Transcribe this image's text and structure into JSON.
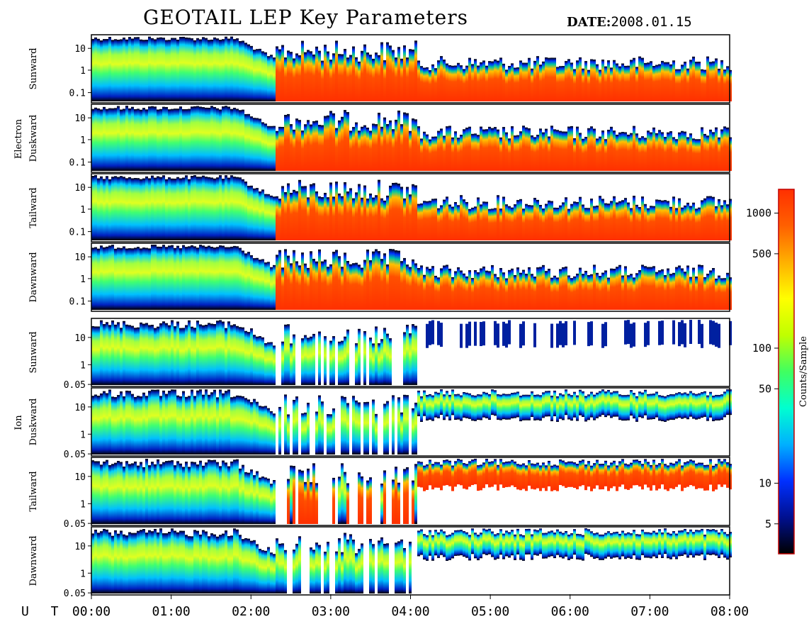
{
  "header": {
    "title": "GEOTAIL LEP Key Parameters",
    "date_label": "DATE:",
    "date_value": "2008.01.15"
  },
  "chart_data": {
    "type": "heatmap",
    "title": "GEOTAIL LEP Key Parameters",
    "x_axis": {
      "label": "U T",
      "range": [
        "00:00",
        "08:00"
      ],
      "ticks": [
        "00:00",
        "01:00",
        "02:00",
        "03:00",
        "04:00",
        "05:00",
        "06:00",
        "07:00",
        "08:00"
      ]
    },
    "groups": [
      {
        "name": "Electron",
        "panels": [
          {
            "label": "Sunward",
            "y_ticks": [
              "10",
              "1",
              "0.1"
            ]
          },
          {
            "label": "Duskward",
            "y_ticks": [
              "10",
              "1",
              "0.1"
            ]
          },
          {
            "label": "Tailward",
            "y_ticks": [
              "10",
              "1",
              "0.1"
            ]
          },
          {
            "label": "Dawnward",
            "y_ticks": [
              "10",
              "1",
              "0.1"
            ]
          }
        ]
      },
      {
        "name": "Ion",
        "panels": [
          {
            "label": "Sunward",
            "y_ticks": [
              "10",
              "1",
              "0.05"
            ]
          },
          {
            "label": "Duskward",
            "y_ticks": [
              "10",
              "1",
              "0.05"
            ]
          },
          {
            "label": "Tailward",
            "y_ticks": [
              "10",
              "1",
              "0.05"
            ]
          },
          {
            "label": "Dawnward",
            "y_ticks": [
              "10",
              "1",
              "0.05"
            ]
          }
        ]
      }
    ],
    "colorbar": {
      "label": "Counts/Sample",
      "scale": "log",
      "range": [
        3,
        1500
      ],
      "ticks": [
        {
          "value": 5,
          "label": "5"
        },
        {
          "value": 10,
          "label": "10"
        },
        {
          "value": 50,
          "label": "50"
        },
        {
          "value": 100,
          "label": "100"
        },
        {
          "value": 500,
          "label": "500"
        },
        {
          "value": 1000,
          "label": "1000"
        }
      ],
      "colors": [
        "#000000",
        "#001090",
        "#0030ff",
        "#00b0ff",
        "#00ffd0",
        "#40ff60",
        "#c0ff00",
        "#ffff00",
        "#ffb000",
        "#ff6000",
        "#ff3000"
      ]
    }
  }
}
